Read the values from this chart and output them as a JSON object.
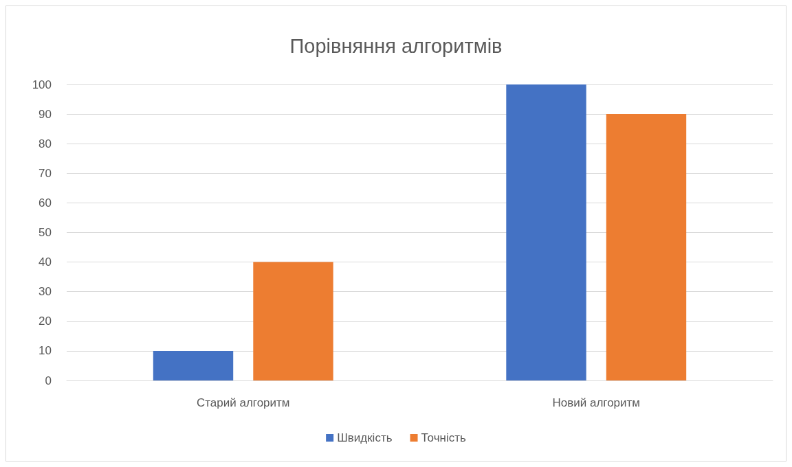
{
  "chart_data": {
    "type": "bar",
    "title": "Порівняння алгоритмів",
    "categories": [
      "Старий алгоритм",
      "Новий алгоритм"
    ],
    "series": [
      {
        "name": "Швидкість",
        "color": "#4472c4",
        "values": [
          10,
          100
        ]
      },
      {
        "name": "Точність",
        "color": "#ed7d31",
        "values": [
          40,
          90
        ]
      }
    ],
    "ylim": [
      0,
      100
    ],
    "yticks": [
      0,
      10,
      20,
      30,
      40,
      50,
      60,
      70,
      80,
      90,
      100
    ],
    "grid": "y",
    "legend": "bottom"
  }
}
